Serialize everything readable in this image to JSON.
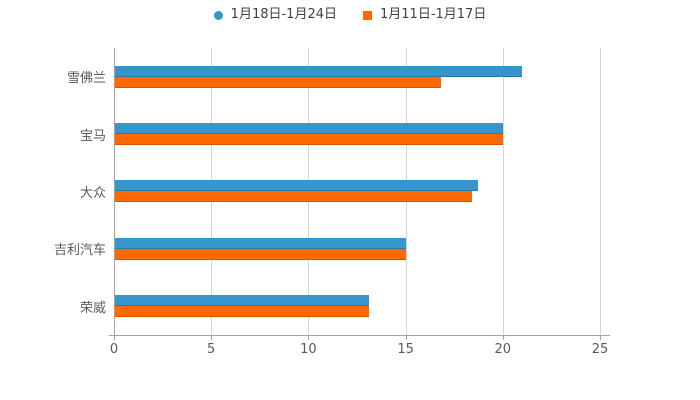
{
  "legend": {
    "items": [
      {
        "label": "1月18日-1月24日",
        "color": "#3596ce",
        "marker": "circle"
      },
      {
        "label": "1月11日-1月17日",
        "color": "#ff6900",
        "marker": "square"
      }
    ]
  },
  "chart_data": {
    "type": "bar",
    "orientation": "horizontal",
    "title": "",
    "xlabel": "",
    "ylabel": "",
    "categories": [
      "雪佛兰",
      "宝马",
      "大众",
      "吉利汽车",
      "荣威"
    ],
    "series": [
      {
        "name": "1月18日-1月24日",
        "color": "#3596ce",
        "values": [
          21.0,
          20.0,
          18.7,
          15.0,
          13.1
        ]
      },
      {
        "name": "1月11日-1月17日",
        "color": "#ff6900",
        "values": [
          16.8,
          20.0,
          18.4,
          15.0,
          13.1
        ]
      }
    ],
    "xlim": [
      0,
      25
    ],
    "x_ticks": [
      0,
      5,
      10,
      15,
      20,
      25
    ],
    "grid": true,
    "legend_position": "top",
    "background": "#ffffff"
  }
}
